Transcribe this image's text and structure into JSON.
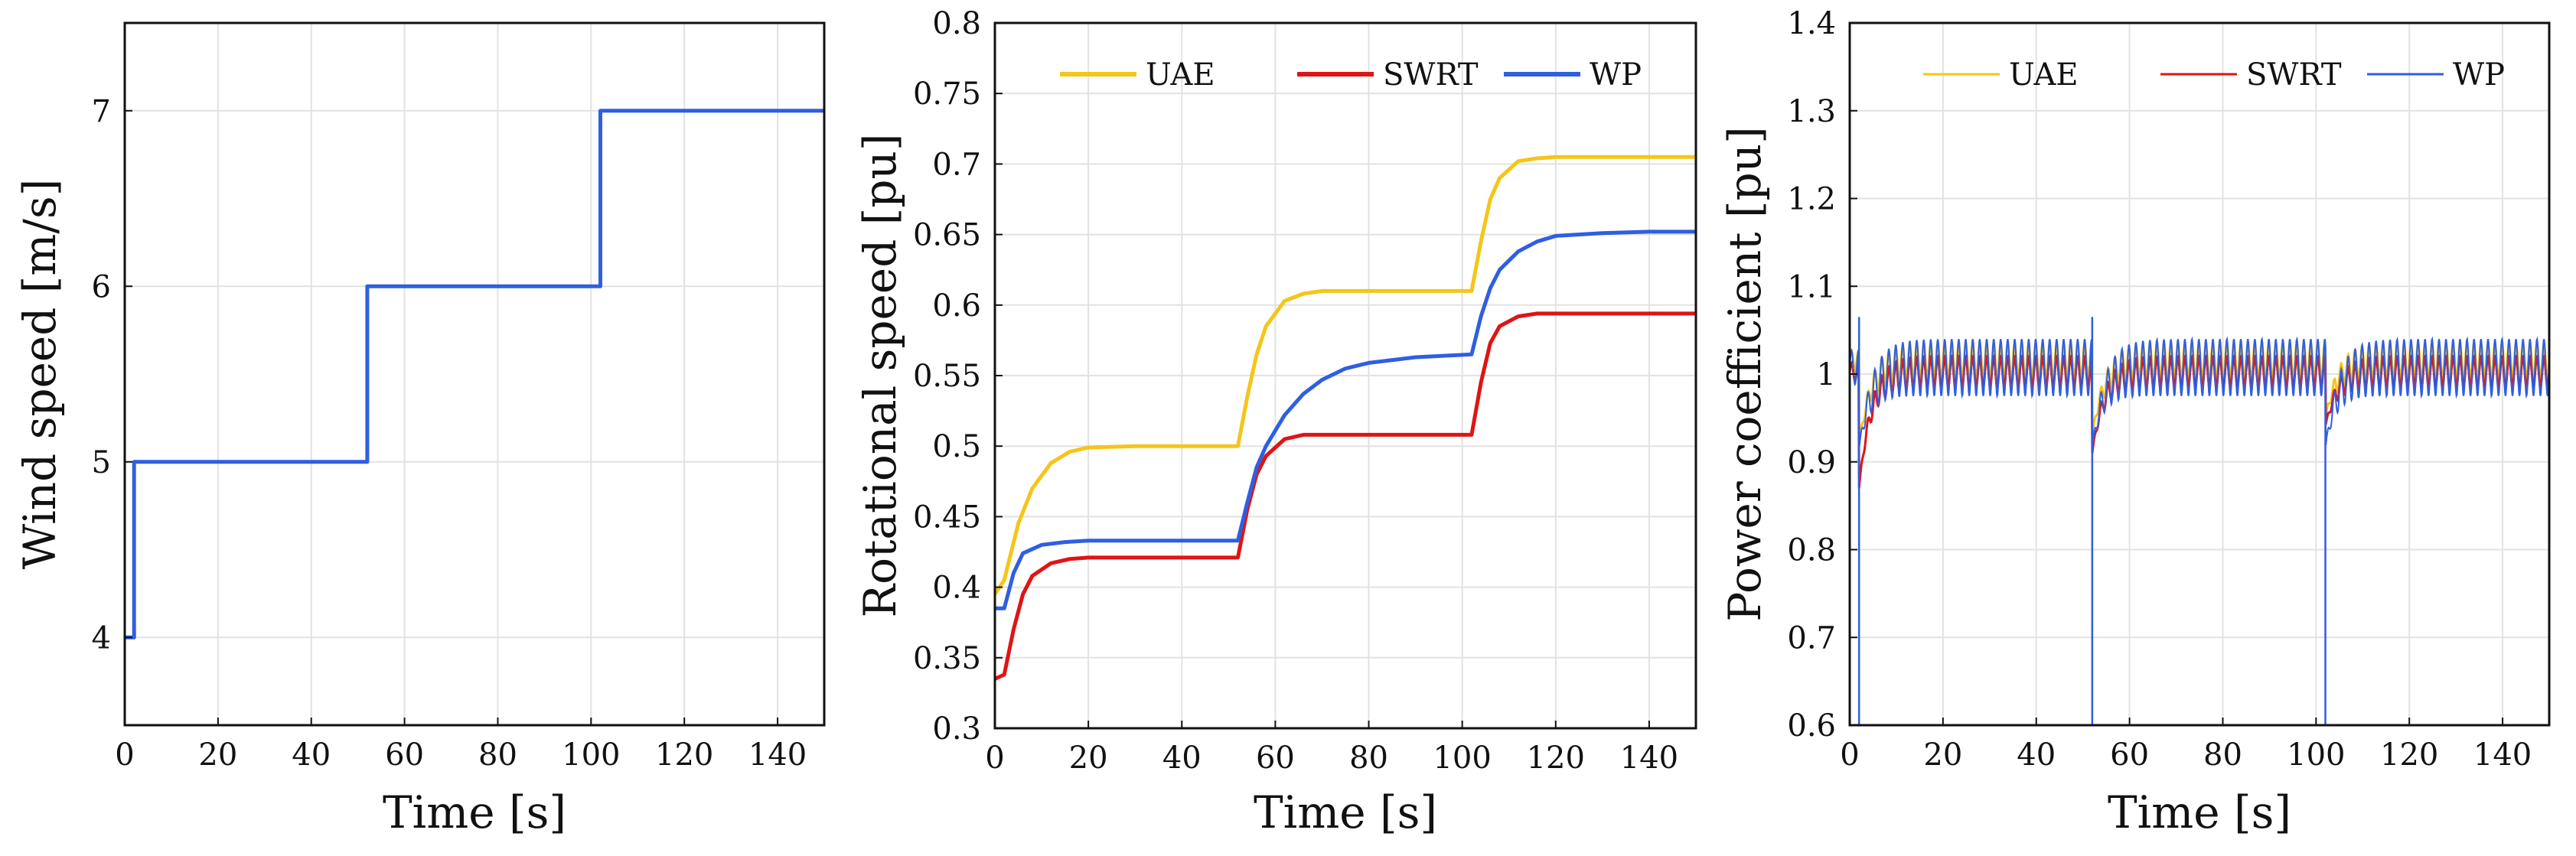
{
  "chart_data": [
    {
      "type": "line",
      "xlabel": "Time [s]",
      "ylabel": "Wind speed [m/s]",
      "xlim": [
        0,
        150
      ],
      "ylim": [
        3.5,
        7.5
      ],
      "xticks": [
        0,
        20,
        40,
        60,
        80,
        100,
        120,
        140
      ],
      "yticks": [
        4,
        5,
        6,
        7
      ],
      "grid": true,
      "legend": null,
      "series": [
        {
          "color": "#2f5fe0",
          "x": [
            0,
            2,
            2,
            52,
            52,
            102,
            102,
            150
          ],
          "y": [
            4,
            4,
            5,
            5,
            6,
            6,
            7,
            7
          ]
        }
      ]
    },
    {
      "type": "line",
      "xlabel": "Time [s]",
      "ylabel": "Rotational speed [pu]",
      "xlim": [
        0,
        150
      ],
      "ylim": [
        0.3,
        0.8
      ],
      "xticks": [
        0,
        20,
        40,
        60,
        80,
        100,
        120,
        140
      ],
      "yticks": [
        0.3,
        0.35,
        0.4,
        0.45,
        0.5,
        0.55,
        0.6,
        0.65,
        0.7,
        0.75,
        0.8
      ],
      "grid": true,
      "legend": "top",
      "series": [
        {
          "name": "UAE",
          "color": "#f5c518",
          "x": [
            0,
            2,
            5,
            8,
            12,
            16,
            20,
            30,
            40,
            52,
            54,
            56,
            58,
            62,
            66,
            70,
            80,
            90,
            102,
            104,
            106,
            108,
            112,
            116,
            120,
            130,
            140,
            150
          ],
          "y": [
            0.395,
            0.405,
            0.445,
            0.47,
            0.488,
            0.496,
            0.499,
            0.5,
            0.5,
            0.5,
            0.535,
            0.565,
            0.585,
            0.603,
            0.608,
            0.61,
            0.61,
            0.61,
            0.61,
            0.645,
            0.675,
            0.69,
            0.702,
            0.704,
            0.705,
            0.705,
            0.705,
            0.705
          ]
        },
        {
          "name": "SWRT",
          "color": "#e01414",
          "x": [
            0,
            2,
            4,
            6,
            8,
            12,
            16,
            20,
            30,
            40,
            52,
            54,
            56,
            58,
            62,
            66,
            70,
            80,
            90,
            102,
            104,
            106,
            108,
            112,
            116,
            120,
            130,
            140,
            150
          ],
          "y": [
            0.335,
            0.338,
            0.37,
            0.395,
            0.408,
            0.417,
            0.42,
            0.421,
            0.421,
            0.421,
            0.421,
            0.455,
            0.48,
            0.493,
            0.505,
            0.508,
            0.508,
            0.508,
            0.508,
            0.508,
            0.545,
            0.573,
            0.585,
            0.592,
            0.594,
            0.594,
            0.594,
            0.594,
            0.594
          ]
        },
        {
          "name": "WP",
          "color": "#2f5fe0",
          "x": [
            0,
            2,
            4,
            6,
            10,
            15,
            20,
            30,
            40,
            52,
            54,
            56,
            58,
            62,
            66,
            70,
            75,
            80,
            90,
            102,
            104,
            106,
            108,
            112,
            116,
            120,
            130,
            140,
            150
          ],
          "y": [
            0.385,
            0.385,
            0.41,
            0.424,
            0.43,
            0.432,
            0.433,
            0.433,
            0.433,
            0.433,
            0.46,
            0.485,
            0.5,
            0.522,
            0.537,
            0.547,
            0.555,
            0.559,
            0.563,
            0.565,
            0.592,
            0.612,
            0.625,
            0.638,
            0.645,
            0.649,
            0.651,
            0.652,
            0.652
          ]
        }
      ]
    },
    {
      "type": "line",
      "xlabel": "Time [s]",
      "ylabel": "Power coefficient [pu]",
      "xlim": [
        0,
        150
      ],
      "ylim": [
        0.6,
        1.4
      ],
      "xticks": [
        0,
        20,
        40,
        60,
        80,
        100,
        120,
        140
      ],
      "yticks": [
        0.6,
        0.7,
        0.8,
        0.9,
        1,
        1.1,
        1.2,
        1.3,
        1.4
      ],
      "grid": true,
      "legend": "top",
      "series": [
        {
          "name": "UAE",
          "color": "#f5c518",
          "step_times": [
            2,
            52,
            102
          ],
          "dip_levels": [
            0.92,
            0.93,
            0.95
          ],
          "upper_band": 1.035,
          "lower_band": 0.995,
          "oscillation_period": 1.5
        },
        {
          "name": "SWRT",
          "color": "#e01414",
          "step_times": [
            2,
            52,
            102
          ],
          "dip_levels": [
            0.87,
            0.91,
            0.94
          ],
          "upper_band": 1.02,
          "lower_band": 0.985,
          "oscillation_period": 1.5
        },
        {
          "name": "WP",
          "color": "#2f5fe0",
          "step_times": [
            2,
            52,
            102
          ],
          "spike_low": [
            0.6,
            0.6,
            0.6
          ],
          "spike_high": [
            1.065,
            1.065,
            1.03
          ],
          "upper_band": 1.04,
          "lower_band": 0.975,
          "oscillation_period": 1.5
        }
      ]
    }
  ]
}
